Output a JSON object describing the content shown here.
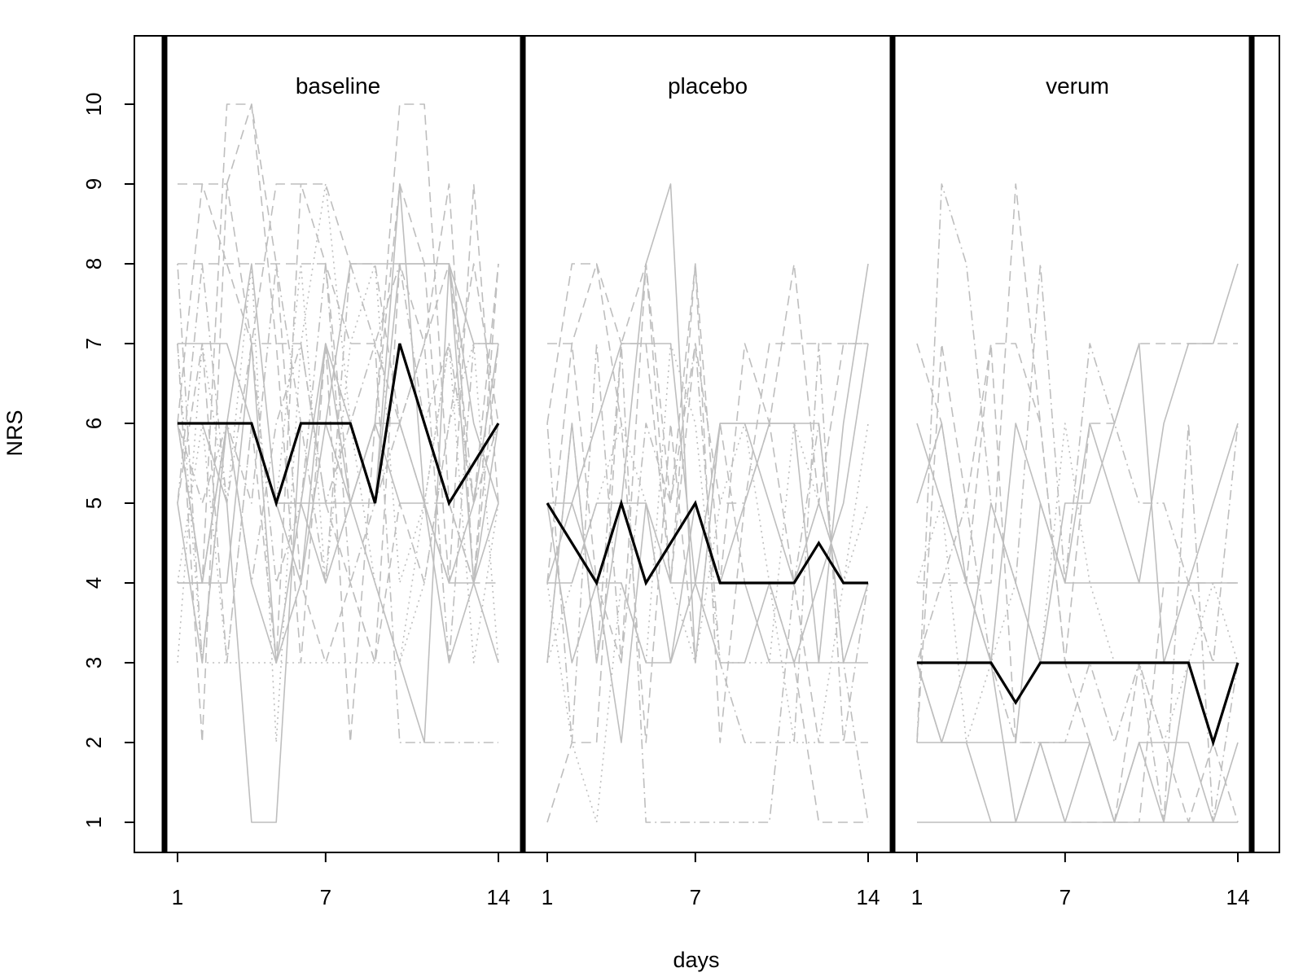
{
  "chart_data": {
    "type": "line",
    "ylabel": "NRS",
    "xlabel": "days",
    "ylim": [
      1,
      10
    ],
    "y_ticks": [
      1,
      2,
      3,
      4,
      5,
      6,
      7,
      8,
      9,
      10
    ],
    "x_ticks": [
      1,
      7,
      14
    ],
    "grid": false,
    "colors": {
      "mean": "#000000",
      "individual": "#bebebe",
      "separator": "#000000"
    },
    "panels": [
      {
        "label": "baseline",
        "mean": [
          6,
          6,
          6,
          6,
          5,
          6,
          6,
          6,
          5,
          7,
          6,
          5,
          5.5,
          6
        ],
        "individual": [
          {
            "style": "solid",
            "values": [
              7,
              7,
              7,
              6,
              5,
              5,
              7,
              6,
              5,
              9,
              5,
              4,
              5,
              7
            ]
          },
          {
            "style": "solid",
            "values": [
              4,
              4,
              6,
              6,
              5,
              4,
              6,
              5,
              5,
              8,
              8,
              8,
              7,
              7
            ]
          },
          {
            "style": "solid",
            "values": [
              6,
              6,
              5,
              1,
              1,
              6,
              6,
              8,
              8,
              8,
              8,
              8,
              6,
              5
            ]
          },
          {
            "style": "solid",
            "values": [
              5,
              3,
              6,
              4,
              3,
              5,
              5,
              5,
              4,
              3,
              2,
              8,
              4,
              3
            ]
          },
          {
            "style": "solid",
            "values": [
              6,
              4,
              4,
              7,
              3,
              4,
              7,
              5,
              6,
              5,
              5,
              3,
              4,
              6
            ]
          },
          {
            "style": "solid",
            "values": [
              4,
              4,
              6,
              8,
              5,
              5,
              4,
              5,
              6,
              6,
              5,
              4,
              4,
              5
            ]
          },
          {
            "style": "dashed",
            "values": [
              9,
              9,
              9,
              7,
              9,
              9,
              8,
              5,
              6,
              10,
              10,
              5,
              4,
              8
            ]
          },
          {
            "style": "dashed",
            "values": [
              7,
              2,
              9,
              10,
              8,
              4,
              3,
              4,
              3,
              8,
              7,
              9,
              4,
              4
            ]
          },
          {
            "style": "dashed",
            "values": [
              8,
              8,
              8,
              8,
              8,
              8,
              8,
              7,
              7,
              6,
              5,
              5,
              4,
              7
            ]
          },
          {
            "style": "dashed",
            "values": [
              6,
              4,
              10,
              10,
              7,
              3,
              7,
              2,
              6,
              9,
              8,
              4,
              9,
              5
            ]
          },
          {
            "style": "dashed",
            "values": [
              5,
              7,
              3,
              6,
              3,
              9,
              9,
              8,
              8,
              6,
              7,
              8,
              5,
              8
            ]
          },
          {
            "style": "dashed",
            "values": [
              6,
              9,
              8,
              7,
              7,
              7,
              5,
              4,
              3,
              5,
              4,
              6,
              8,
              6
            ]
          },
          {
            "style": "dotted",
            "values": [
              3,
              7,
              5,
              8,
              2,
              7,
              9,
              6,
              4,
              3,
              5,
              7,
              5,
              6
            ]
          },
          {
            "style": "dotted",
            "values": [
              7,
              3,
              3,
              3,
              3,
              3,
              3,
              3,
              3,
              3,
              4,
              6,
              7,
              3
            ]
          },
          {
            "style": "dotted",
            "values": [
              4,
              6,
              3,
              6,
              5,
              8,
              4,
              7,
              8,
              4,
              5,
              7,
              3,
              5
            ]
          },
          {
            "style": "dotdash",
            "values": [
              8,
              3,
              6,
              5,
              8,
              6,
              4,
              8,
              7,
              2,
              2,
              2,
              2,
              2
            ]
          },
          {
            "style": "dotdash",
            "values": [
              5,
              8,
              5,
              7,
              4,
              5,
              8,
              4,
              5,
              6,
              7,
              3,
              7,
              7
            ]
          },
          {
            "style": "dotdash",
            "values": [
              6,
              5,
              6,
              4,
              6,
              7,
              5,
              6,
              7,
              8,
              6,
              7,
              5,
              6
            ]
          }
        ]
      },
      {
        "label": "placebo",
        "mean": [
          5,
          4.5,
          4,
          5,
          4,
          4.5,
          5,
          4,
          4,
          4,
          4,
          4.5,
          4,
          4
        ],
        "individual": [
          {
            "style": "solid",
            "values": [
              5,
              5,
              4,
              4,
              3,
              3,
              4,
              3,
              3,
              4,
              3,
              3,
              3,
              3
            ]
          },
          {
            "style": "solid",
            "values": [
              4,
              4,
              5,
              5,
              5,
              4,
              4,
              4,
              5,
              6,
              6,
              6,
              3,
              4
            ]
          },
          {
            "style": "solid",
            "values": [
              5,
              3,
              4,
              2,
              5,
              3,
              5,
              4,
              4,
              3,
              3,
              4,
              5,
              7
            ]
          },
          {
            "style": "solid",
            "values": [
              3,
              6,
              3,
              5,
              8,
              9,
              3,
              6,
              6,
              6,
              6,
              3,
              6,
              8
            ]
          },
          {
            "style": "solid",
            "values": [
              4,
              5,
              6,
              7,
              7,
              7,
              4,
              6,
              6,
              5,
              4,
              5,
              4,
              4
            ]
          },
          {
            "style": "dashed",
            "values": [
              1,
              2,
              2,
              7,
              8,
              5,
              8,
              2,
              5,
              6,
              8,
              5,
              7,
              7
            ]
          },
          {
            "style": "dashed",
            "values": [
              6,
              8,
              8,
              7,
              7,
              4,
              7,
              5,
              5,
              7,
              7,
              7,
              7,
              7
            ]
          },
          {
            "style": "dashed",
            "values": [
              4,
              7,
              8,
              6,
              2,
              6,
              3,
              6,
              4,
              4,
              3,
              1,
              1,
              1
            ]
          },
          {
            "style": "dashed",
            "values": [
              7,
              7,
              4,
              3,
              8,
              4,
              8,
              4,
              7,
              6,
              4,
              2,
              2,
              2
            ]
          },
          {
            "style": "dotted",
            "values": [
              3,
              4,
              5,
              6,
              5,
              4,
              3,
              5,
              6,
              4,
              2,
              2,
              4,
              5
            ]
          },
          {
            "style": "dotted",
            "values": [
              4,
              2,
              1,
              4,
              3,
              7,
              6,
              3,
              3,
              3,
              6,
              5,
              4,
              6
            ]
          },
          {
            "style": "dotdash",
            "values": [
              3,
              6,
              3,
              7,
              1,
              1,
              1,
              1,
              1,
              1,
              4,
              6,
              3,
              1
            ]
          },
          {
            "style": "dotdash",
            "values": [
              6,
              2,
              7,
              3,
              6,
              5,
              7,
              3,
              2,
              2,
              2,
              7,
              2,
              4
            ]
          }
        ]
      },
      {
        "label": "verum",
        "mean": [
          3,
          3,
          3,
          3,
          2.5,
          3,
          3,
          3,
          3,
          3,
          3,
          3,
          2,
          3
        ],
        "individual": [
          {
            "style": "solid",
            "values": [
              6,
              5,
              4,
              3,
              1,
              1,
              1,
              1,
              1,
              1,
              1,
              1,
              1,
              1
            ]
          },
          {
            "style": "solid",
            "values": [
              3,
              2,
              2,
              2,
              2,
              5,
              4,
              4,
              4,
              4,
              4,
              4,
              4,
              4
            ]
          },
          {
            "style": "solid",
            "values": [
              1,
              1,
              1,
              1,
              1,
              2,
              2,
              2,
              1,
              2,
              2,
              2,
              1,
              2
            ]
          },
          {
            "style": "solid",
            "values": [
              5,
              6,
              4,
              3,
              6,
              5,
              4,
              6,
              5,
              4,
              6,
              7,
              7,
              8
            ]
          },
          {
            "style": "solid",
            "values": [
              3,
              2,
              3,
              5,
              4,
              3,
              5,
              5,
              6,
              7,
              3,
              4,
              5,
              6
            ]
          },
          {
            "style": "solid",
            "values": [
              2,
              2,
              2,
              1,
              1,
              2,
              1,
              2,
              1,
              2,
              1,
              3,
              3,
              3
            ]
          },
          {
            "style": "dashed",
            "values": [
              7,
              6,
              4,
              4,
              9,
              6,
              3,
              6,
              6,
              7,
              7,
              7,
              7,
              7
            ]
          },
          {
            "style": "dashed",
            "values": [
              4,
              4,
              4,
              7,
              2,
              2,
              1,
              1,
              1,
              1,
              4,
              4,
              4,
              4
            ]
          },
          {
            "style": "dashed",
            "values": [
              2,
              7,
              5,
              7,
              7,
              6,
              3,
              2,
              1,
              3,
              2,
              1,
              2,
              1
            ]
          },
          {
            "style": "dotted",
            "values": [
              4,
              5,
              2,
              3,
              4,
              3,
              6,
              4,
              3,
              3,
              2,
              3,
              4,
              3
            ]
          },
          {
            "style": "dotdash",
            "values": [
              3,
              4,
              5,
              3,
              2,
              2,
              2,
              3,
              2,
              3,
              1,
              6,
              1,
              3
            ]
          },
          {
            "style": "dotdash",
            "values": [
              2,
              9,
              8,
              5,
              4,
              8,
              4,
              7,
              6,
              5,
              5,
              4,
              3,
              6
            ]
          }
        ]
      }
    ]
  }
}
